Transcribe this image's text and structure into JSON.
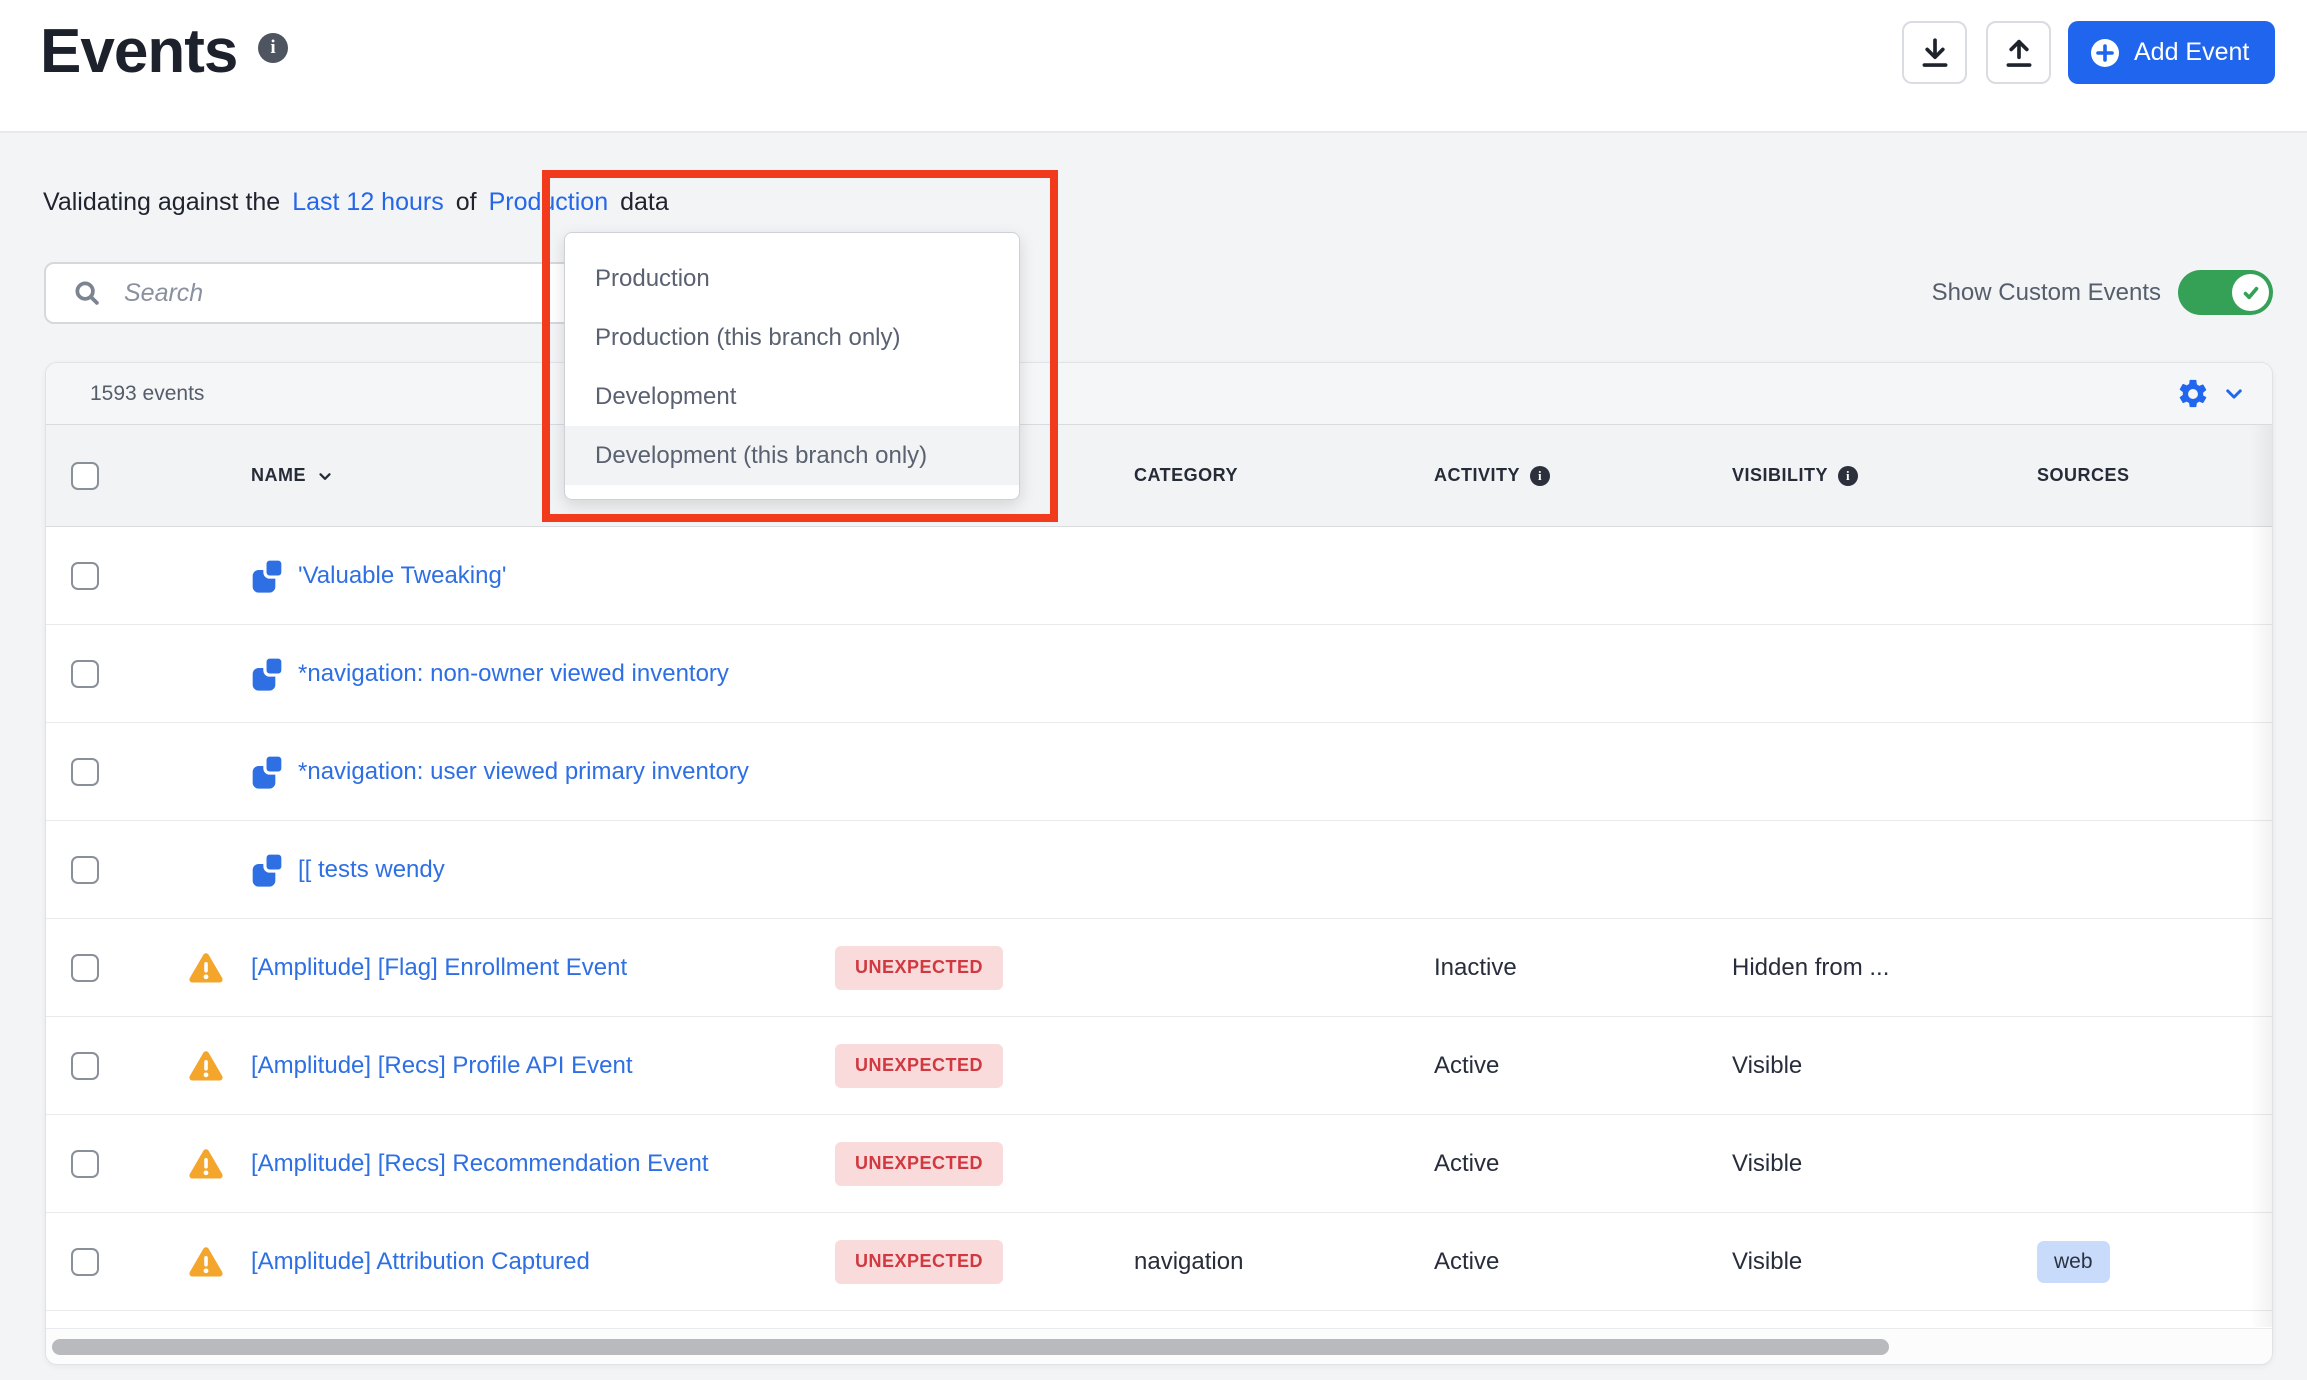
{
  "page": {
    "title": "Events"
  },
  "toolbar": {
    "download_icon": "download-icon",
    "upload_icon": "upload-icon",
    "add_event_label": "Add Event"
  },
  "validating": {
    "prefix": "Validating against the",
    "range_link": "Last 12 hours",
    "connector": "of",
    "env_link": "Production",
    "suffix": "data"
  },
  "search": {
    "placeholder": "Search"
  },
  "custom_events_toggle": {
    "label": "Show Custom Events",
    "state": "on"
  },
  "environment_dropdown": {
    "items": [
      {
        "label": "Production",
        "highlighted": false
      },
      {
        "label": "Production (this branch only)",
        "highlighted": false
      },
      {
        "label": "Development",
        "highlighted": false
      },
      {
        "label": "Development (this branch only)",
        "highlighted": true
      }
    ]
  },
  "events_bar": {
    "count_label": "1593 events"
  },
  "table": {
    "columns": [
      {
        "label": "NAME",
        "sortable": true,
        "info": false
      },
      {
        "label": "CATEGORY",
        "sortable": false,
        "info": false
      },
      {
        "label": "ACTIVITY",
        "sortable": false,
        "info": true
      },
      {
        "label": "VISIBILITY",
        "sortable": false,
        "info": true
      },
      {
        "label": "SOURCES",
        "sortable": false,
        "info": false
      }
    ],
    "rows": [
      {
        "name": "'Valuable Tweaking'",
        "template_icon": true,
        "warning": false,
        "status": "",
        "category": "",
        "activity": "",
        "visibility": "",
        "sources": []
      },
      {
        "name": "*navigation: non-owner viewed inventory",
        "template_icon": true,
        "warning": false,
        "status": "",
        "category": "",
        "activity": "",
        "visibility": "",
        "sources": []
      },
      {
        "name": "*navigation: user viewed primary inventory",
        "template_icon": true,
        "warning": false,
        "status": "",
        "category": "",
        "activity": "",
        "visibility": "",
        "sources": []
      },
      {
        "name": "[[ tests wendy",
        "template_icon": true,
        "warning": false,
        "status": "",
        "category": "",
        "activity": "",
        "visibility": "",
        "sources": []
      },
      {
        "name": "[Amplitude] [Flag] Enrollment Event",
        "template_icon": false,
        "warning": true,
        "status": "UNEXPECTED",
        "category": "",
        "activity": "Inactive",
        "visibility": "Hidden from ...",
        "sources": []
      },
      {
        "name": "[Amplitude] [Recs] Profile API Event",
        "template_icon": false,
        "warning": true,
        "status": "UNEXPECTED",
        "category": "",
        "activity": "Active",
        "visibility": "Visible",
        "sources": []
      },
      {
        "name": "[Amplitude] [Recs] Recommendation Event",
        "template_icon": false,
        "warning": true,
        "status": "UNEXPECTED",
        "category": "",
        "activity": "Active",
        "visibility": "Visible",
        "sources": []
      },
      {
        "name": "[Amplitude] Attribution Captured",
        "template_icon": false,
        "warning": true,
        "status": "UNEXPECTED",
        "category": "navigation",
        "activity": "Active",
        "visibility": "Visible",
        "sources": [
          "web"
        ]
      }
    ]
  },
  "colors": {
    "accent_blue": "#2065ee",
    "link_blue": "#2e6fe4",
    "annotation_red": "#f23a1c",
    "toggle_green": "#34a156",
    "warning_amber": "#f3a52c",
    "unexpected_bg": "#f9dbdc",
    "unexpected_text": "#d03940",
    "source_chip_bg": "#c8dbfa"
  }
}
